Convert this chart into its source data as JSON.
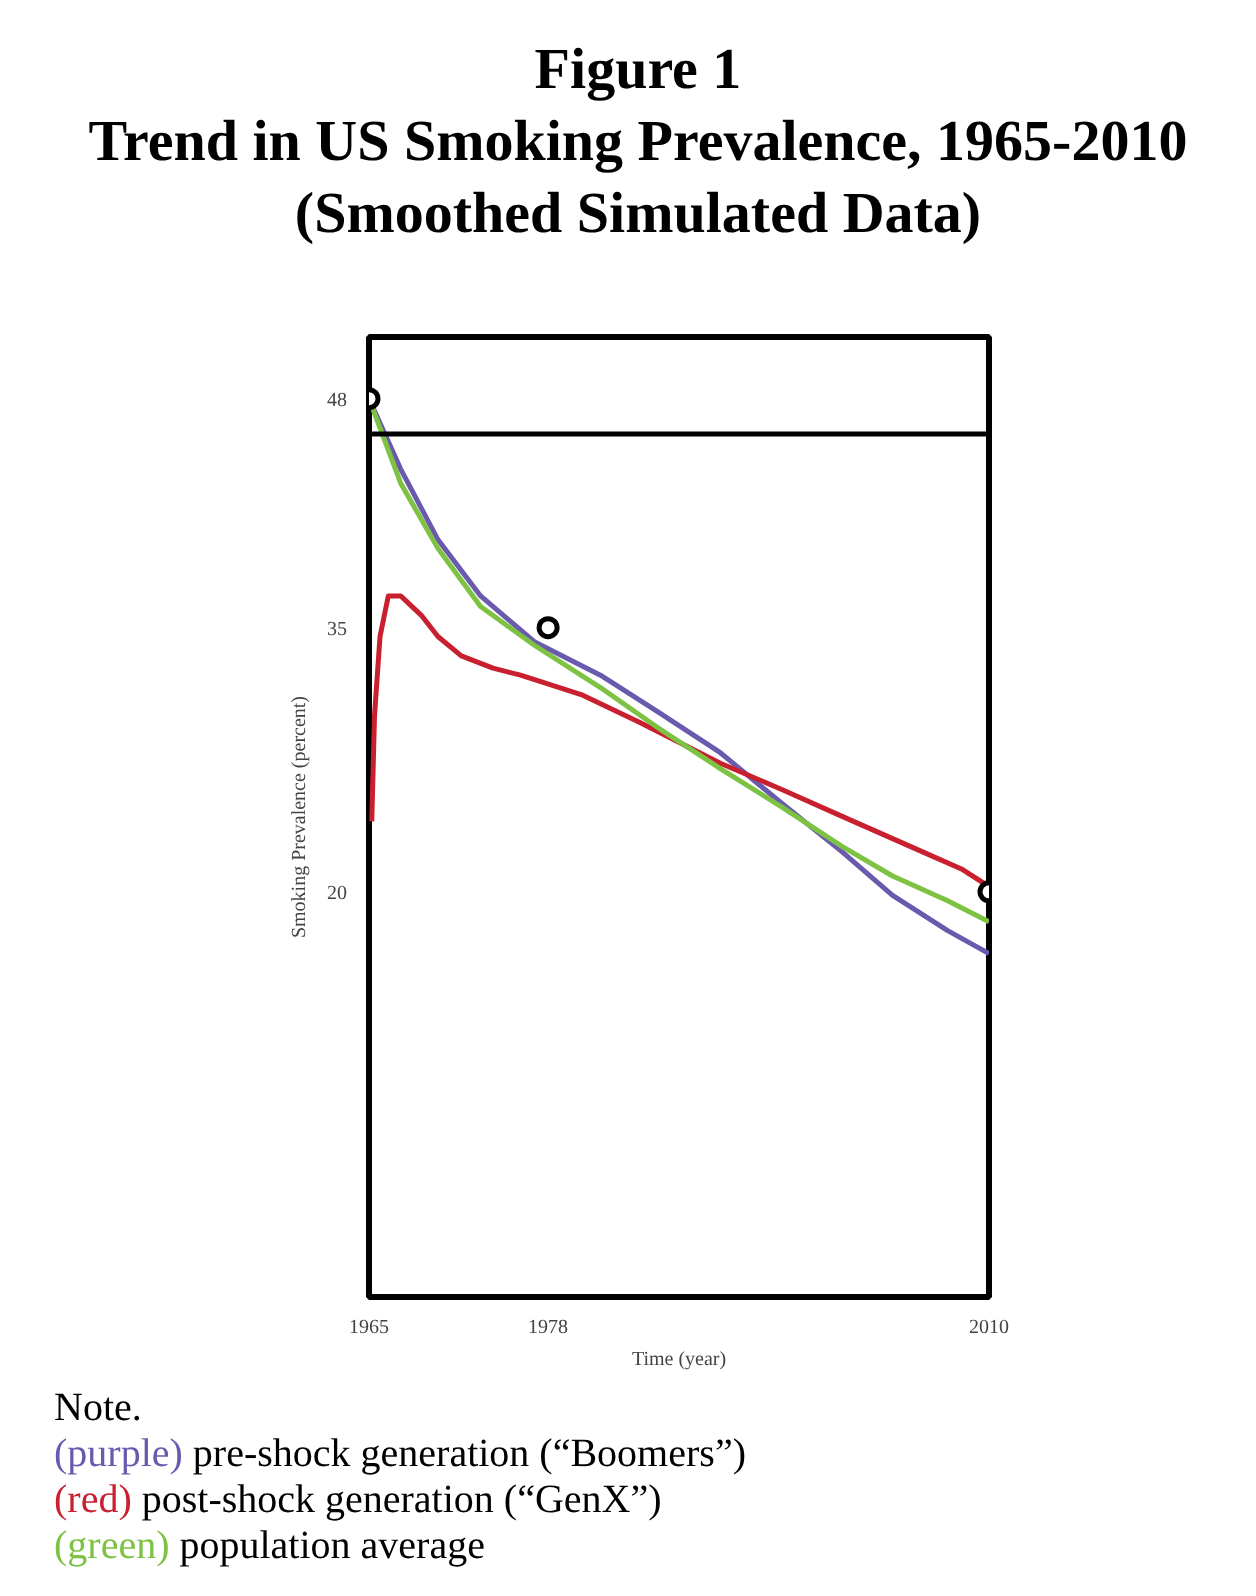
{
  "chart_data": {
    "type": "line",
    "title": "Figure 1",
    "subtitle": "Trend in US Smoking Prevalence, 1965-2010\n(Smoothed Simulated Data)",
    "xlabel": "Time (year)",
    "ylabel": "Smoking Prevalence (percent)",
    "xlim": [
      1965,
      2010
    ],
    "ylim": [
      -3,
      51.5
    ],
    "xticks": [
      1965,
      1978,
      2010
    ],
    "yticks": [
      20,
      35,
      48
    ],
    "grid": false,
    "legend": "bottom",
    "line_style": "solid",
    "ref_lines": [
      {
        "axis": "y",
        "value": 46,
        "color": "#000000"
      }
    ],
    "annotations": [
      "Note."
    ],
    "series": [
      {
        "name": "(purple) pre-shock generation (“Boomers”)",
        "color": "#6a5aae",
        "x": [
          1965,
          1967.3,
          1970,
          1973.1,
          1977,
          1981.8,
          1986,
          1990.5,
          1995,
          1999.3,
          2003,
          2007,
          2010
        ],
        "values": [
          48,
          44,
          40,
          36.8,
          34.2,
          32.3,
          30.2,
          27.9,
          25,
          22.3,
          19.8,
          17.8,
          16.5
        ]
      },
      {
        "name": "(red) post-shock generation (“GenX”)",
        "color": "#c8202e",
        "x": [
          1965.2,
          1965.4,
          1965.8,
          1966.4,
          1967.3,
          1968.8,
          1970,
          1971.7,
          1974,
          1976,
          1980.4,
          1984.7,
          1990.5,
          1995,
          1999.3,
          2005.1,
          2008,
          2010
        ],
        "values": [
          24,
          30,
          34.5,
          36.8,
          36.8,
          35.7,
          34.5,
          33.4,
          32.7,
          32.3,
          31.2,
          29.6,
          27.3,
          25.8,
          24.3,
          22.3,
          21.3,
          20.3
        ]
      },
      {
        "name": "(green) population average",
        "color": "#7dc242",
        "x": [
          1965,
          1967.3,
          1970,
          1973.1,
          1977,
          1981.8,
          1986,
          1990.5,
          1995,
          1999.3,
          2003,
          2007,
          2010
        ],
        "values": [
          48,
          43.2,
          39.5,
          36.2,
          34,
          31.6,
          29.3,
          27,
          24.8,
          22.6,
          20.9,
          19.5,
          18.3
        ]
      },
      {
        "type": "scatter",
        "marker": "circle",
        "color": "#000000",
        "x": [
          1965,
          1978,
          2010
        ],
        "values": [
          48,
          35,
          20
        ]
      }
    ]
  }
}
